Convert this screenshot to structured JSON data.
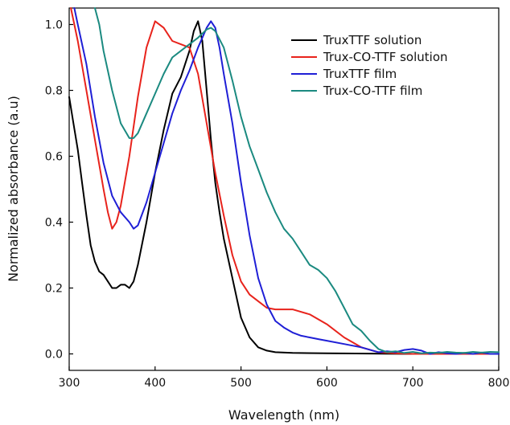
{
  "chart_data": {
    "type": "line",
    "xlabel": "Wavelength (nm)",
    "ylabel": "Normalized absorbance (a.u)",
    "xlim": [
      300,
      800
    ],
    "ylim": [
      -0.05,
      1.05
    ],
    "xticks": [
      300,
      400,
      500,
      600,
      700,
      800
    ],
    "yticks": [
      0.0,
      0.2,
      0.4,
      0.6,
      0.8,
      1.0
    ],
    "ytick_labels": [
      "0.0",
      "0.2",
      "0.4",
      "0.6",
      "0.8",
      "1.0"
    ],
    "legend_position": "top-right",
    "grid": false,
    "series": [
      {
        "name": "TruxTTF solution",
        "color": "#000000",
        "x": [
          300,
          305,
          310,
          315,
          320,
          325,
          330,
          335,
          340,
          345,
          350,
          355,
          360,
          365,
          370,
          375,
          380,
          390,
          400,
          410,
          420,
          430,
          440,
          445,
          450,
          455,
          460,
          465,
          470,
          475,
          480,
          490,
          500,
          510,
          520,
          530,
          540,
          560,
          600,
          650,
          700,
          750,
          800
        ],
        "y": [
          0.78,
          0.7,
          0.62,
          0.52,
          0.42,
          0.33,
          0.28,
          0.25,
          0.24,
          0.22,
          0.2,
          0.2,
          0.21,
          0.21,
          0.2,
          0.22,
          0.27,
          0.4,
          0.55,
          0.68,
          0.79,
          0.84,
          0.92,
          0.98,
          1.01,
          0.95,
          0.8,
          0.65,
          0.52,
          0.43,
          0.35,
          0.23,
          0.11,
          0.05,
          0.02,
          0.01,
          0.005,
          0.003,
          0.002,
          0.001,
          0.0,
          0.0,
          0.0
        ]
      },
      {
        "name": "Trux-CO-TTF solution",
        "color": "#e8231c",
        "x": [
          302,
          310,
          320,
          330,
          340,
          345,
          350,
          355,
          360,
          370,
          380,
          390,
          400,
          410,
          420,
          430,
          440,
          450,
          460,
          470,
          480,
          490,
          500,
          510,
          520,
          530,
          540,
          560,
          580,
          600,
          620,
          640,
          660,
          680,
          700,
          750,
          800
        ],
        "y": [
          1.05,
          0.95,
          0.8,
          0.65,
          0.5,
          0.43,
          0.38,
          0.4,
          0.45,
          0.6,
          0.78,
          0.93,
          1.01,
          0.99,
          0.95,
          0.94,
          0.93,
          0.85,
          0.7,
          0.55,
          0.42,
          0.3,
          0.22,
          0.18,
          0.16,
          0.14,
          0.135,
          0.135,
          0.12,
          0.09,
          0.05,
          0.02,
          0.005,
          0.002,
          0.0,
          0.0,
          0.0
        ]
      },
      {
        "name": "TruxTTF film",
        "color": "#1f1fd6",
        "x": [
          306,
          310,
          320,
          330,
          340,
          350,
          360,
          370,
          375,
          380,
          390,
          400,
          410,
          420,
          430,
          440,
          450,
          460,
          465,
          470,
          475,
          480,
          490,
          500,
          510,
          520,
          530,
          540,
          550,
          560,
          570,
          580,
          590,
          600,
          620,
          640,
          660,
          670,
          680,
          690,
          700,
          710,
          720,
          730,
          740,
          750,
          760,
          770,
          780,
          790,
          800
        ],
        "y": [
          1.05,
          1.0,
          0.88,
          0.72,
          0.58,
          0.48,
          0.43,
          0.4,
          0.38,
          0.39,
          0.46,
          0.55,
          0.64,
          0.73,
          0.8,
          0.86,
          0.93,
          0.99,
          1.01,
          0.99,
          0.93,
          0.85,
          0.7,
          0.52,
          0.36,
          0.23,
          0.15,
          0.1,
          0.08,
          0.065,
          0.055,
          0.05,
          0.045,
          0.04,
          0.03,
          0.02,
          0.005,
          0.008,
          0.005,
          0.012,
          0.015,
          0.01,
          0.0,
          0.005,
          0.002,
          0.0,
          0.003,
          0.0,
          0.004,
          0.0,
          0.0
        ]
      },
      {
        "name": "Trux-CO-TTF film",
        "color": "#1b8a80",
        "x": [
          330,
          335,
          340,
          350,
          360,
          370,
          375,
          380,
          390,
          400,
          410,
          420,
          430,
          440,
          450,
          460,
          465,
          470,
          480,
          490,
          500,
          510,
          520,
          530,
          540,
          550,
          560,
          570,
          580,
          590,
          600,
          610,
          620,
          630,
          640,
          650,
          660,
          670,
          680,
          690,
          700,
          710,
          720,
          730,
          740,
          750,
          760,
          770,
          780,
          790,
          800
        ],
        "y": [
          1.05,
          1.0,
          0.92,
          0.8,
          0.7,
          0.655,
          0.655,
          0.67,
          0.73,
          0.79,
          0.85,
          0.9,
          0.92,
          0.94,
          0.96,
          0.985,
          0.99,
          0.98,
          0.93,
          0.83,
          0.72,
          0.63,
          0.56,
          0.49,
          0.43,
          0.38,
          0.35,
          0.31,
          0.27,
          0.255,
          0.23,
          0.19,
          0.14,
          0.09,
          0.07,
          0.04,
          0.015,
          0.005,
          0.008,
          0.003,
          0.006,
          0.002,
          0.004,
          0.003,
          0.006,
          0.004,
          0.003,
          0.006,
          0.004,
          0.006,
          0.005
        ]
      }
    ]
  }
}
